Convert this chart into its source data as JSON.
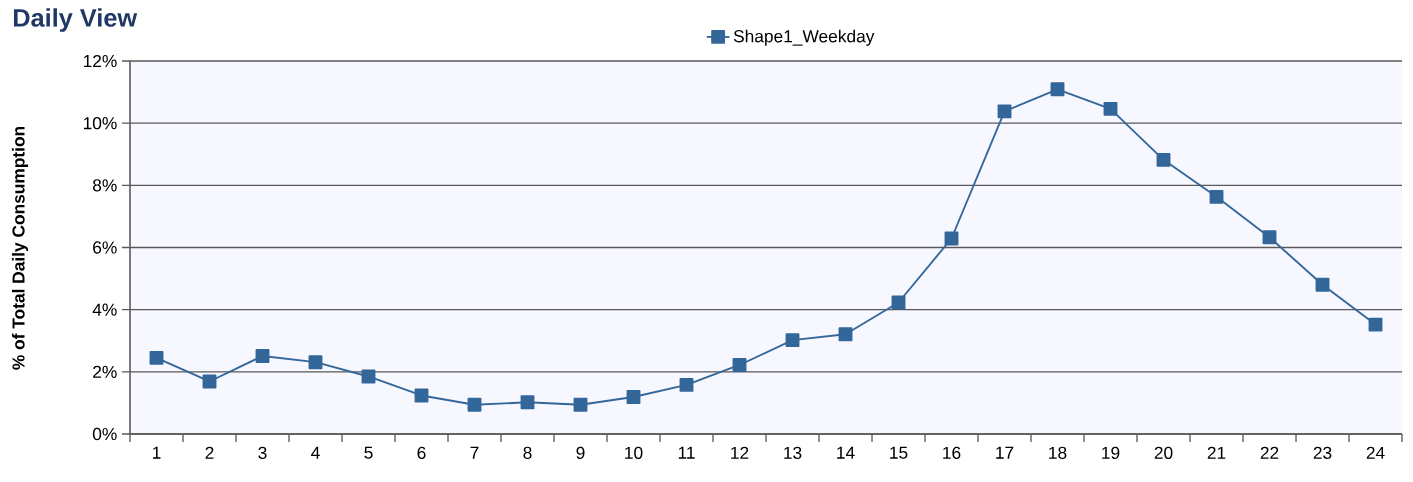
{
  "chart_data": {
    "type": "line",
    "title": "Daily View",
    "ylabel": "% of Total Daily Consumption",
    "categories": [
      "1",
      "2",
      "3",
      "4",
      "5",
      "6",
      "7",
      "8",
      "9",
      "10",
      "11",
      "12",
      "13",
      "14",
      "15",
      "16",
      "17",
      "18",
      "19",
      "20",
      "21",
      "22",
      "23",
      "24"
    ],
    "series": [
      {
        "name": "Shape1_Weekday",
        "color": "#336699",
        "values": [
          2.45,
          1.69,
          2.51,
          2.31,
          1.85,
          1.24,
          0.94,
          1.02,
          0.94,
          1.19,
          1.58,
          2.22,
          3.02,
          3.21,
          4.23,
          6.29,
          10.38,
          11.09,
          10.46,
          8.82,
          7.63,
          6.33,
          4.8,
          3.52
        ]
      }
    ],
    "ylim": [
      0,
      12
    ],
    "yticks": [
      {
        "value": 0,
        "label": "0%"
      },
      {
        "value": 2,
        "label": "2%"
      },
      {
        "value": 4,
        "label": "4%"
      },
      {
        "value": 6,
        "label": "6%"
      },
      {
        "value": 8,
        "label": "8%"
      },
      {
        "value": 10,
        "label": "10%"
      },
      {
        "value": 12,
        "label": "12%"
      }
    ],
    "grid": "y",
    "legend": "top",
    "marker": "square",
    "line_style": "solid"
  }
}
